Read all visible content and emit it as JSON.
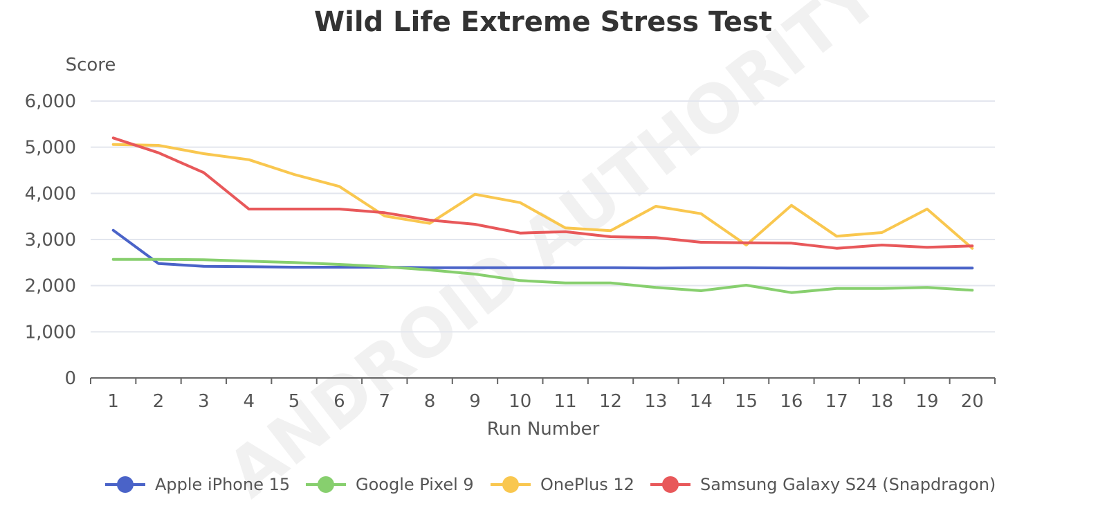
{
  "chart_data": {
    "type": "line",
    "title": "Wild Life Extreme Stress Test",
    "xlabel": "Run Number",
    "ylabel": "Score",
    "categories": [
      "1",
      "2",
      "3",
      "4",
      "5",
      "6",
      "7",
      "8",
      "9",
      "10",
      "11",
      "12",
      "13",
      "14",
      "15",
      "16",
      "17",
      "18",
      "19",
      "20"
    ],
    "yticks": [
      0,
      1000,
      2000,
      3000,
      4000,
      5000,
      6000
    ],
    "ytick_labels": [
      "0",
      "1,000",
      "2,000",
      "3,000",
      "4,000",
      "5,000",
      "6,000"
    ],
    "ylim": [
      0,
      6000
    ],
    "grid": true,
    "legend_position": "bottom",
    "series": [
      {
        "name": "Apple iPhone 15",
        "color": "#4a63c8",
        "values": [
          3200,
          2480,
          2420,
          2410,
          2400,
          2400,
          2400,
          2390,
          2390,
          2390,
          2390,
          2390,
          2380,
          2390,
          2390,
          2380,
          2380,
          2380,
          2380,
          2380
        ]
      },
      {
        "name": "Google Pixel 9",
        "color": "#87cf6e",
        "values": [
          2570,
          2570,
          2560,
          2530,
          2500,
          2460,
          2410,
          2340,
          2250,
          2110,
          2060,
          2060,
          1960,
          1890,
          2010,
          1850,
          1940,
          1940,
          1960,
          1900
        ]
      },
      {
        "name": "OnePlus 12",
        "color": "#f9c74f",
        "values": [
          5060,
          5040,
          4860,
          4730,
          4410,
          4150,
          3510,
          3350,
          3980,
          3800,
          3250,
          3190,
          3720,
          3560,
          2880,
          3740,
          3070,
          3150,
          3660,
          2810
        ]
      },
      {
        "name": "Samsung Galaxy S24 (Snapdragon)",
        "color": "#e8585a",
        "values": [
          5200,
          4880,
          4450,
          3660,
          3660,
          3660,
          3580,
          3420,
          3330,
          3140,
          3170,
          3060,
          3040,
          2940,
          2930,
          2920,
          2810,
          2880,
          2830,
          2860
        ]
      }
    ]
  },
  "watermark": {
    "text": "ANDROID AUTHORITY"
  }
}
